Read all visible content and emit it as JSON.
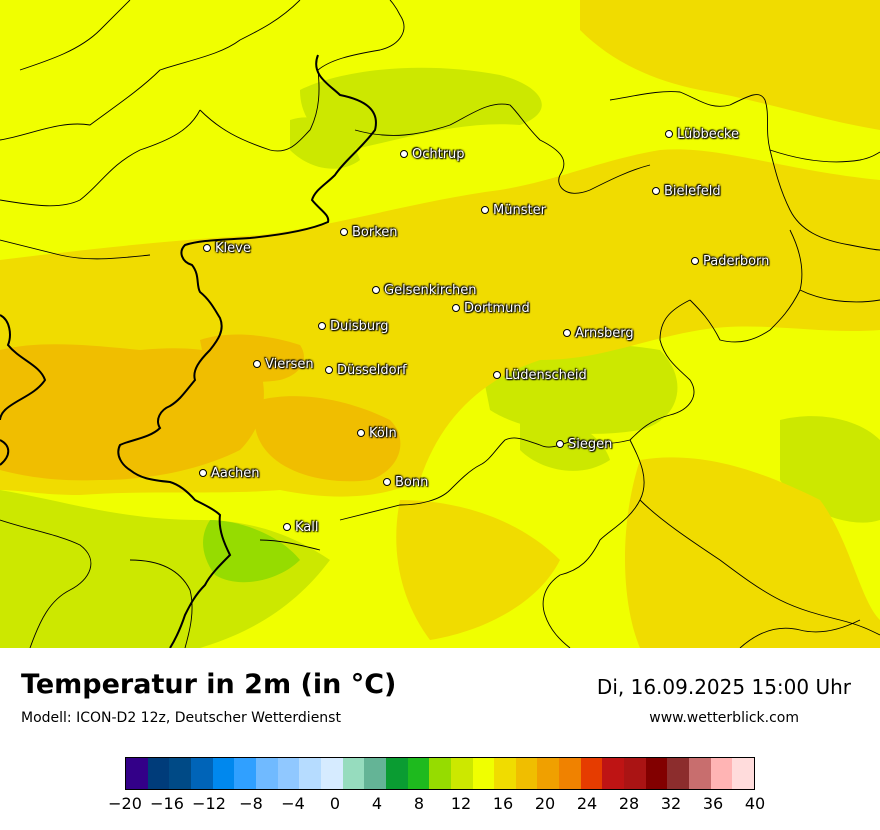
{
  "map": {
    "title": "Temperatur in 2m (in °C)",
    "model": "Modell: ICON-D2 12z, Deutscher Wetterdienst",
    "datetime": "Di, 16.09.2025 15:00 Uhr",
    "source": "www.wetterblick.com",
    "cities": [
      "Lübbecke",
      "Ochtrup",
      "Bielefeld",
      "Münster",
      "Borken",
      "Kleve",
      "Paderborn",
      "Gelsenkirchen",
      "Dortmund",
      "Duisburg",
      "Arnsberg",
      "Viersen",
      "Düsseldorf",
      "Lüdenscheid",
      "Köln",
      "Siegen",
      "Aachen",
      "Bonn",
      "Kall"
    ]
  },
  "legend": {
    "colors": [
      "#330088",
      "#003c7a",
      "#004a86",
      "#0064b8",
      "#0088ee",
      "#30a0ff",
      "#70baff",
      "#90c8ff",
      "#b6dcff",
      "#d6ebff",
      "#96dcbe",
      "#64b496",
      "#0a9c32",
      "#1eba1e",
      "#96dc00",
      "#cce800",
      "#f0ff00",
      "#f0dc00",
      "#f0be00",
      "#f0a000",
      "#f08200",
      "#e63c00",
      "#be1414",
      "#aa1414",
      "#820000",
      "#8c2d2d",
      "#c86e6e",
      "#ffb4b4",
      "#ffdcdc"
    ],
    "ticks": [
      "−20",
      "−16",
      "−12",
      "−8",
      "−4",
      "0",
      "4",
      "8",
      "12",
      "16",
      "20",
      "24",
      "28",
      "32",
      "36",
      "40"
    ]
  }
}
